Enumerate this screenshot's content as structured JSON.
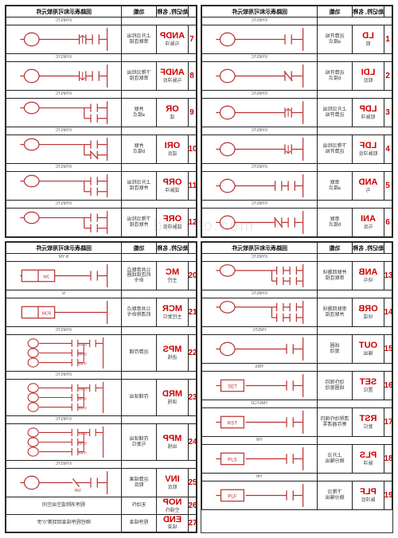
{
  "watermark": "boifrito.com",
  "headers": {
    "num": "",
    "mn": "助记符, 名称",
    "fn": "功能",
    "sym": "回路表示和可用软元件"
  },
  "sym_label": "XYMSTC",
  "colors": {
    "accent": "#c00",
    "line": "#b33",
    "border": "#222",
    "text": "#333"
  },
  "quads": [
    {
      "rows": [
        {
          "n": "1",
          "code": "LD",
          "sub": "取",
          "fn": "运算开始\na接点",
          "shape": "no"
        },
        {
          "n": "2",
          "code": "LDI",
          "sub": "取反",
          "fn": "运算开始\nb接点",
          "shape": "nc"
        },
        {
          "n": "3",
          "code": "LDP",
          "sub": "取脉冲",
          "fn": "上升沿检出\n运算开始",
          "shape": "nop"
        },
        {
          "n": "4",
          "code": "LDF",
          "sub": "取脉冲反",
          "fn": "下降沿检出\n运算开始",
          "shape": "nof"
        },
        {
          "n": "5",
          "code": "AND",
          "sub": "与",
          "fn": "串联\na接点",
          "shape": "ser_no"
        },
        {
          "n": "6",
          "code": "ANI",
          "sub": "与反",
          "fn": "串联\nb接点",
          "shape": "ser_nc"
        }
      ]
    },
    {
      "rows": [
        {
          "n": "7",
          "code": "ANDP",
          "sub": "与脉冲",
          "fn": "上升沿检出\n串联连接",
          "shape": "ser_nop"
        },
        {
          "n": "8",
          "code": "ANDF",
          "sub": "与脉冲反",
          "fn": "下降沿检出\n串联连接",
          "shape": "ser_nof"
        },
        {
          "n": "9",
          "code": "OR",
          "sub": "或",
          "fn": "并联\na接点",
          "shape": "par_no"
        },
        {
          "n": "10",
          "code": "ORI",
          "sub": "或反",
          "fn": "并联\nb接点",
          "shape": "par_nc"
        },
        {
          "n": "11",
          "code": "ORP",
          "sub": "或脉冲",
          "fn": "上升沿检出\n并联连接",
          "shape": "par_nop"
        },
        {
          "n": "12",
          "code": "ORF",
          "sub": "或脉冲反",
          "fn": "下降沿检出\n并联连接",
          "shape": "par_nof"
        }
      ]
    },
    {
      "rows": [
        {
          "n": "13",
          "code": "ANB",
          "sub": "块与",
          "fn": "并联回路块\n串联连接",
          "shape": "anb"
        },
        {
          "n": "14",
          "code": "ORB",
          "sub": "块或",
          "fn": "串联回路块\n并联连接",
          "shape": "orb"
        },
        {
          "n": "15",
          "code": "OUT",
          "sub": "输出",
          "fn": "线圈\n驱动",
          "shape": "coil",
          "lab": "YMSTC"
        },
        {
          "n": "16",
          "code": "SET",
          "sub": "置位",
          "fn": "动作保持\n线圈驱动",
          "shape": "set",
          "lab": "YMS"
        },
        {
          "n": "17",
          "code": "RST",
          "sub": "复位",
          "fn": "清除动作保持\n寄存器清零",
          "shape": "rst",
          "lab": "YMSTCD"
        },
        {
          "n": "18",
          "code": "PLS",
          "sub": "脉冲",
          "fn": "上升沿\n微分输出",
          "shape": "pls",
          "lab": "YM"
        },
        {
          "n": "19",
          "code": "PLF",
          "sub": "脉冲反",
          "fn": "下降沿\n微分输出",
          "shape": "plf",
          "lab": "YM"
        }
      ]
    },
    {
      "rows": [
        {
          "n": "20",
          "code": "MC",
          "sub": "主控",
          "fn": "公共串联点\n的连接线圈\n命令",
          "shape": "mc",
          "lab": "N   YM"
        },
        {
          "n": "21",
          "code": "MCR",
          "sub": "主控复位",
          "fn": "公共串联点\n的清除命令",
          "shape": "mcr",
          "lab": "N"
        },
        {
          "n": "22",
          "code": "MPS",
          "sub": "进栈",
          "fn": "运算存储",
          "shape": "mps"
        },
        {
          "n": "23",
          "code": "MRD",
          "sub": "读栈",
          "fn": "存储读出",
          "shape": "mrd"
        },
        {
          "n": "24",
          "code": "MPP",
          "sub": "出栈",
          "fn": "存储读出\n与复位",
          "shape": "mpp"
        },
        {
          "n": "25",
          "code": "INV",
          "sub": "取反",
          "fn": "运算结果\n取反",
          "shape": "inv"
        },
        {
          "n": "26",
          "code": "NOP",
          "sub": "空操作",
          "fn": "无动作",
          "shape": "none",
          "full": "程序消除或空出空间"
        },
        {
          "n": "27",
          "code": "END",
          "sub": "结束",
          "fn": "程序结束",
          "shape": "none",
          "full": "顺控程序结束回到第\"0\"步"
        }
      ]
    }
  ]
}
